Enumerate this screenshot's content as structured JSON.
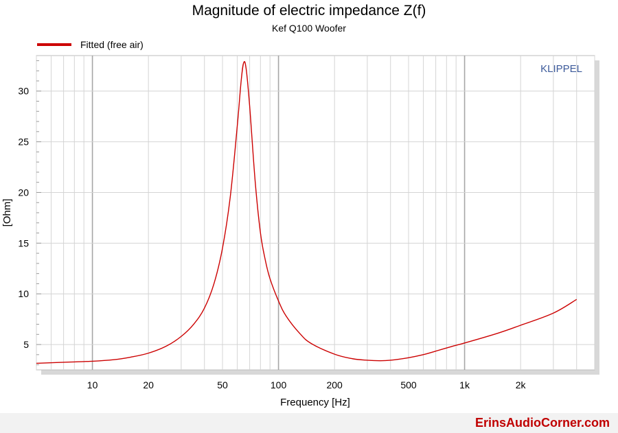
{
  "chart_data": {
    "type": "line",
    "title": "Magnitude of electric impedance Z(f)",
    "subtitle": "Kef Q100 Woofer",
    "xlabel": "Frequency [Hz]",
    "ylabel": "[Ohm]",
    "x_scale": "log",
    "xlim": [
      5,
      5000
    ],
    "ylim": [
      2.5,
      33.5
    ],
    "grid": true,
    "legend_position": "top-left",
    "watermark": "KLIPPEL",
    "x_ticks": [
      {
        "value": 10,
        "label": "10"
      },
      {
        "value": 20,
        "label": "20"
      },
      {
        "value": 50,
        "label": "50"
      },
      {
        "value": 100,
        "label": "100"
      },
      {
        "value": 200,
        "label": "200"
      },
      {
        "value": 500,
        "label": "500"
      },
      {
        "value": 1000,
        "label": "1k"
      },
      {
        "value": 2000,
        "label": "2k"
      }
    ],
    "y_ticks": [
      {
        "value": 5,
        "label": "5"
      },
      {
        "value": 10,
        "label": "10"
      },
      {
        "value": 15,
        "label": "15"
      },
      {
        "value": 20,
        "label": "20"
      },
      {
        "value": 25,
        "label": "25"
      },
      {
        "value": 30,
        "label": "30"
      }
    ],
    "series": [
      {
        "name": "Fitted (free air)",
        "color": "#cc0000",
        "points": [
          [
            5,
            3.15
          ],
          [
            7,
            3.25
          ],
          [
            10,
            3.35
          ],
          [
            13,
            3.5
          ],
          [
            16,
            3.75
          ],
          [
            20,
            4.15
          ],
          [
            25,
            4.85
          ],
          [
            30,
            5.8
          ],
          [
            35,
            7.0
          ],
          [
            40,
            8.6
          ],
          [
            45,
            11.0
          ],
          [
            50,
            14.5
          ],
          [
            55,
            19.5
          ],
          [
            60,
            26.5
          ],
          [
            63,
            31.0
          ],
          [
            65,
            32.8
          ],
          [
            67,
            32.2
          ],
          [
            70,
            28.5
          ],
          [
            75,
            21.0
          ],
          [
            80,
            16.0
          ],
          [
            85,
            13.3
          ],
          [
            90,
            11.5
          ],
          [
            100,
            9.3
          ],
          [
            110,
            7.8
          ],
          [
            130,
            6.1
          ],
          [
            150,
            5.1
          ],
          [
            200,
            4.05
          ],
          [
            250,
            3.6
          ],
          [
            300,
            3.45
          ],
          [
            350,
            3.4
          ],
          [
            400,
            3.45
          ],
          [
            500,
            3.7
          ],
          [
            600,
            4.0
          ],
          [
            700,
            4.35
          ],
          [
            850,
            4.8
          ],
          [
            1000,
            5.15
          ],
          [
            1500,
            6.1
          ],
          [
            2000,
            6.9
          ],
          [
            3000,
            8.1
          ],
          [
            4000,
            9.45
          ]
        ]
      }
    ]
  },
  "footer": {
    "brand": "ErinsAudioCorner.com"
  }
}
